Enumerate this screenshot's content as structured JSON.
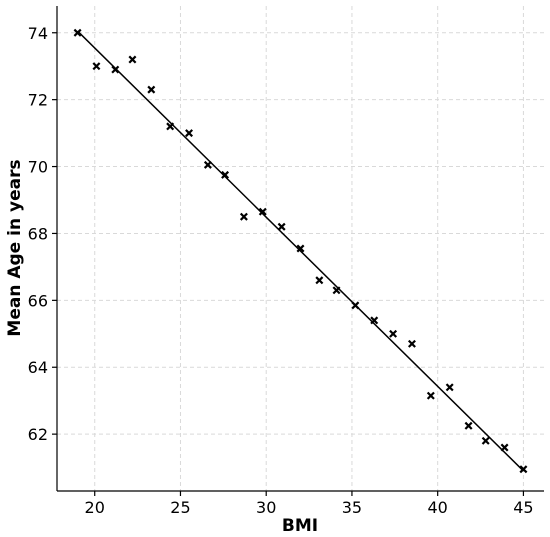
{
  "chart_data": {
    "type": "scatter",
    "title": "",
    "xlabel": "BMI",
    "ylabel": "Mean Age in years",
    "xlim": [
      17.8,
      46.2
    ],
    "ylim": [
      60.3,
      74.8
    ],
    "x_ticks": [
      20,
      25,
      30,
      35,
      40,
      45
    ],
    "y_ticks": [
      62,
      64,
      66,
      68,
      70,
      72,
      74
    ],
    "grid": true,
    "series": [
      {
        "marker": "x",
        "color": "#000000",
        "points": [
          [
            19.0,
            74.0
          ],
          [
            20.1,
            73.0
          ],
          [
            21.2,
            72.9
          ],
          [
            22.2,
            73.2
          ],
          [
            23.3,
            72.3
          ],
          [
            24.4,
            71.2
          ],
          [
            25.5,
            71.0
          ],
          [
            26.6,
            70.05
          ],
          [
            27.6,
            69.75
          ],
          [
            28.7,
            68.5
          ],
          [
            29.8,
            68.65
          ],
          [
            30.9,
            68.2
          ],
          [
            32.0,
            67.55
          ],
          [
            33.1,
            66.6
          ],
          [
            34.1,
            66.3
          ],
          [
            35.2,
            65.85
          ],
          [
            36.3,
            65.4
          ],
          [
            37.4,
            65.0
          ],
          [
            38.5,
            64.7
          ],
          [
            39.6,
            63.15
          ],
          [
            40.7,
            63.4
          ],
          [
            41.8,
            62.25
          ],
          [
            42.8,
            61.8
          ],
          [
            43.9,
            61.6
          ],
          [
            45.0,
            60.95
          ]
        ]
      }
    ],
    "trend_line": {
      "color": "#000000",
      "points": [
        [
          19.0,
          74.05
        ],
        [
          45.0,
          60.9
        ]
      ]
    }
  }
}
